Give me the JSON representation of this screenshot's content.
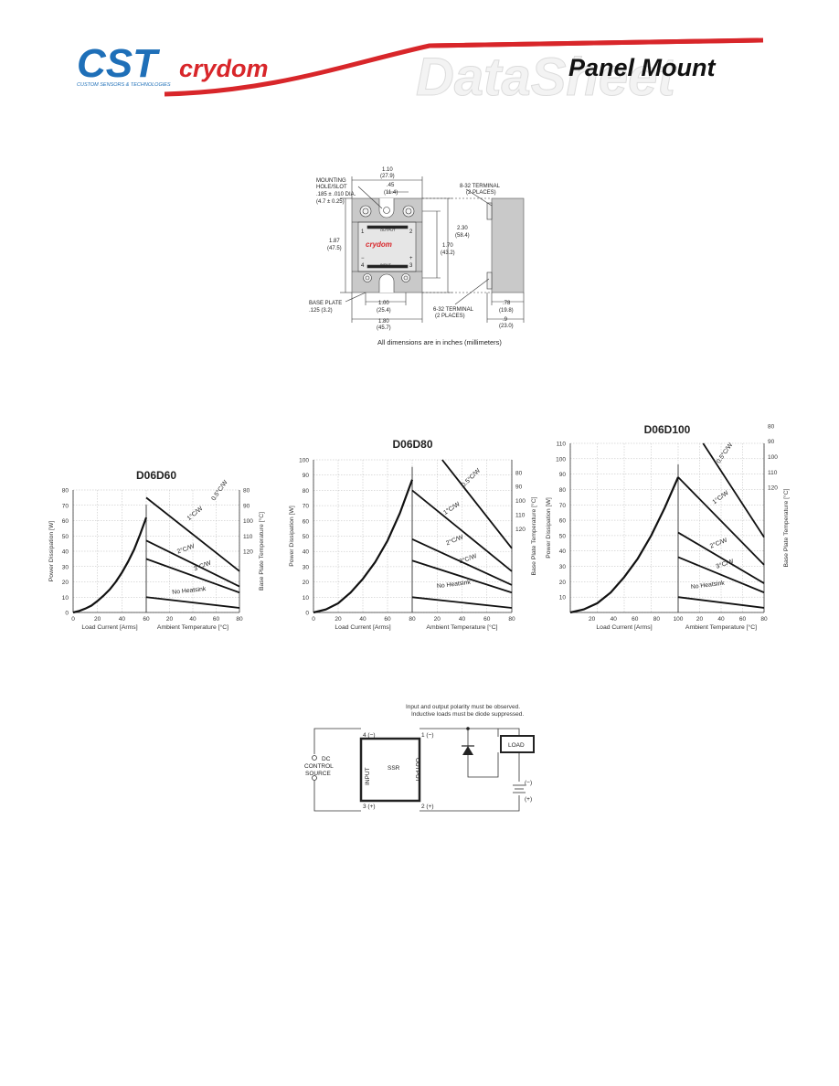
{
  "header": {
    "cst_logo": "CST",
    "cst_tagline": "CUSTOM SENSORS & TECHNOLOGIES",
    "brand": "crydom",
    "watermark": "DataSheet",
    "title": "Panel Mount",
    "colors": {
      "cst_blue": "#1e6fb8",
      "crydom_red": "#d8262a"
    }
  },
  "dimension_drawing": {
    "labels": {
      "mounting": "MOUNTING",
      "hole_slot": "HOLE/SLOT",
      "hole_dia": ".185 ± .010 DIA.",
      "hole_dia_mm": "(4.7 ± 0.25)",
      "width_top": "1.10",
      "width_top_mm": "(27.9)",
      "offset": ".45",
      "offset_mm": "(11.4)",
      "terminal_832": "8-32 TERMINAL",
      "terminal_832_places": "(2 PLACES)",
      "height_left": "1.87",
      "height_left_mm": "(47.5)",
      "height_right": "2.30",
      "height_right_mm": "(58.4)",
      "height_inner": "1.70",
      "height_inner_mm": "(43.2)",
      "base_plate": "BASE PLATE",
      "base_plate_dim": ".125 (3.2)",
      "terminal_632": "6-32 TERMINAL",
      "terminal_632_places": "(2 PLACES)",
      "width_inner": "1.00",
      "width_inner_mm": "(25.4)",
      "width_base": "1.80",
      "width_base_mm": "(45.7)",
      "depth1": ".78",
      "depth1_mm": "(19.8)",
      "depth2": ".9",
      "depth2_mm": "(23.0)",
      "face_brand": "crydom",
      "face_output": "OUTPUT",
      "face_input": "INPUT",
      "pin1": "1",
      "pin2": "2",
      "pin3": "3",
      "pin4": "4",
      "plus": "+",
      "minus": "−"
    },
    "caption": "All dimensions are in inches (millimeters)"
  },
  "chart_data": [
    {
      "type": "line",
      "title": "D06D60",
      "xlabel_left": "Load Current [Arms]",
      "xlabel_right": "Ambient Temperature [°C]",
      "ylabel_left": "Power Dissipation [W]",
      "ylabel_right": "Base Plate Temperature [°C]",
      "left_x": [
        0,
        20,
        40,
        60
      ],
      "left_ticks_x": [
        "0",
        "20",
        "40",
        "60"
      ],
      "left_ylim": [
        0,
        80
      ],
      "left_ticks_y": [
        "0",
        "10",
        "20",
        "30",
        "40",
        "50",
        "60",
        "70",
        "80"
      ],
      "right_x_ticks": [
        "20",
        "40",
        "60",
        "80"
      ],
      "right_y_ticks": [
        "80",
        "90",
        "100",
        "110",
        "120"
      ],
      "curve": {
        "x": [
          0,
          5,
          10,
          15,
          20,
          25,
          30,
          35,
          40,
          45,
          50,
          55,
          60
        ],
        "y": [
          0,
          1,
          2.5,
          4.5,
          7.5,
          11,
          15,
          20,
          26,
          33,
          41,
          51,
          62
        ]
      },
      "series": [
        {
          "name": "0.5°C/W",
          "x": [
            0,
            80
          ],
          "y": [
            130,
            80
          ]
        },
        {
          "name": "1°C/W",
          "x": [
            0,
            80
          ],
          "y": [
            75,
            27
          ]
        },
        {
          "name": "2°C/W",
          "x": [
            0,
            80
          ],
          "y": [
            47,
            17
          ]
        },
        {
          "name": "3°C/W",
          "x": [
            0,
            80
          ],
          "y": [
            35,
            13
          ]
        },
        {
          "name": "No Heatsink",
          "x": [
            0,
            80
          ],
          "y": [
            10,
            3
          ]
        }
      ]
    },
    {
      "type": "line",
      "title": "D06D80",
      "xlabel_left": "Load Current [Arms]",
      "xlabel_right": "Ambient Temperature [°C]",
      "ylabel_left": "Power Dissipation [W]",
      "ylabel_right": "Base Plate Temperature [°C]",
      "left_x": [
        0,
        20,
        40,
        60,
        80
      ],
      "left_ticks_x": [
        "0",
        "20",
        "40",
        "60",
        "80"
      ],
      "left_ylim": [
        0,
        100
      ],
      "left_ticks_y": [
        "0",
        "10",
        "20",
        "30",
        "40",
        "50",
        "60",
        "70",
        "80",
        "90",
        "100"
      ],
      "right_x_ticks": [
        "20",
        "40",
        "60",
        "80"
      ],
      "right_y_ticks": [
        "80",
        "90",
        "100",
        "110",
        "120"
      ],
      "curve": {
        "x": [
          0,
          10,
          20,
          30,
          40,
          50,
          60,
          70,
          80
        ],
        "y": [
          0,
          2,
          6,
          13,
          22,
          33,
          47,
          65,
          87
        ]
      },
      "series": [
        {
          "name": "0.5°C/W",
          "x": [
            0,
            80
          ],
          "y": [
            125,
            42
          ]
        },
        {
          "name": "1°C/W",
          "x": [
            0,
            80
          ],
          "y": [
            80,
            27
          ]
        },
        {
          "name": "2°C/W",
          "x": [
            0,
            80
          ],
          "y": [
            48,
            18
          ]
        },
        {
          "name": "3°C/W",
          "x": [
            0,
            80
          ],
          "y": [
            34,
            13
          ]
        },
        {
          "name": "No Heatsink",
          "x": [
            0,
            80
          ],
          "y": [
            10,
            3
          ]
        }
      ]
    },
    {
      "type": "line",
      "title": "D06D100",
      "xlabel_left": "Load Current [Arms]",
      "xlabel_right": "Ambient Temperature [°C]",
      "ylabel_left": "Power Dissipation [W]",
      "ylabel_right": "Base Plate Temperature [°C]",
      "left_x": [
        20,
        40,
        60,
        80,
        100
      ],
      "left_ticks_x": [
        "20",
        "40",
        "60",
        "80",
        "100"
      ],
      "left_ylim": [
        0,
        110
      ],
      "left_ticks_y": [
        "10",
        "20",
        "30",
        "40",
        "50",
        "60",
        "70",
        "80",
        "90",
        "100",
        "110"
      ],
      "right_x_ticks": [
        "20",
        "40",
        "60",
        "80"
      ],
      "right_y_ticks": [
        "80",
        "90",
        "100",
        "110",
        "120"
      ],
      "curve": {
        "x": [
          0,
          12.5,
          25,
          37.5,
          50,
          62.5,
          75,
          87.5,
          100
        ],
        "y": [
          0,
          2,
          6,
          13,
          23,
          35,
          50,
          68,
          88
        ]
      },
      "series": [
        {
          "name": "0.5°C/W",
          "x": [
            0,
            80
          ],
          "y": [
            135,
            49
          ]
        },
        {
          "name": "1°C/W",
          "x": [
            0,
            80
          ],
          "y": [
            88,
            31
          ]
        },
        {
          "name": "2°C/W",
          "x": [
            0,
            80
          ],
          "y": [
            52,
            19
          ]
        },
        {
          "name": "3°C/W",
          "x": [
            0,
            80
          ],
          "y": [
            36,
            13
          ]
        },
        {
          "name": "No Heatsink",
          "x": [
            0,
            80
          ],
          "y": [
            10,
            3
          ]
        }
      ]
    }
  ],
  "wiring": {
    "note1": "Input and output polarity must be observed.",
    "note2": "Inductive loads must be diode suppressed.",
    "pin4": "4 (−)",
    "pin3": "3 (+)",
    "pin1": "1 (−)",
    "pin2": "2 (+)",
    "ssr": "SSR",
    "input": "INPUT",
    "output": "OUTPUT",
    "load": "LOAD",
    "dc1": "DC",
    "dc2": "CONTROL",
    "dc3": "SOURCE",
    "neg": "(−)",
    "pos": "(+)"
  }
}
